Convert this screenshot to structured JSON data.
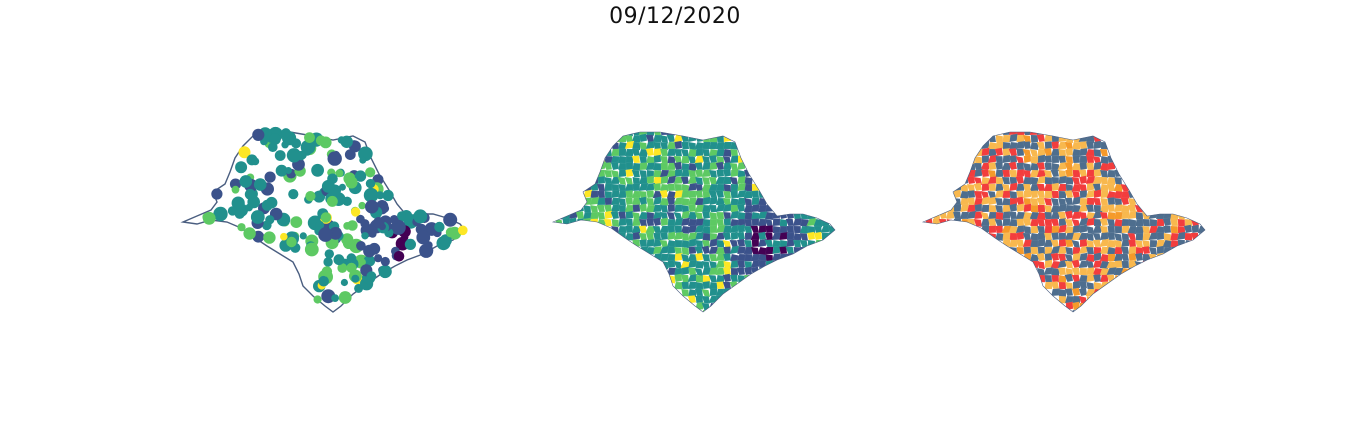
{
  "figure": {
    "title": "09/12/2020"
  },
  "colors": {
    "outline": "#4a5e80",
    "viridis": [
      "#440154",
      "#3b528b",
      "#21908d",
      "#5dc963",
      "#fde725"
    ],
    "categories": [
      "#4e6e8e",
      "#f8b84e",
      "#f23d3d",
      "#f59a2a"
    ]
  }
}
